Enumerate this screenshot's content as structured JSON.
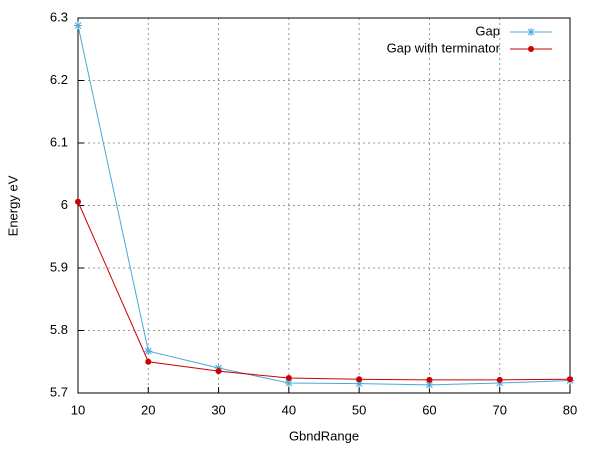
{
  "chart_data": {
    "type": "line",
    "x_label": "GbndRange",
    "y_label": "Energy eV",
    "x": [
      10,
      20,
      30,
      40,
      50,
      60,
      70,
      80
    ],
    "series": [
      {
        "name": "Gap",
        "color": "#4aa8d8",
        "marker": "asterisk",
        "values": [
          6.288,
          5.767,
          5.74,
          5.716,
          5.715,
          5.713,
          5.716,
          5.72
        ]
      },
      {
        "name": "Gap with terminator",
        "color": "#cc0000",
        "marker": "circle",
        "values": [
          6.006,
          5.75,
          5.735,
          5.724,
          5.722,
          5.721,
          5.721,
          5.722
        ]
      }
    ],
    "xlim": [
      10,
      80
    ],
    "xticks": [
      10,
      20,
      30,
      40,
      50,
      60,
      70,
      80
    ],
    "ylim": [
      5.7,
      6.3
    ],
    "yticks": [
      5.7,
      5.8,
      5.9,
      6,
      6.1,
      6.2,
      6.3
    ],
    "grid": true,
    "legend": "top-right"
  }
}
